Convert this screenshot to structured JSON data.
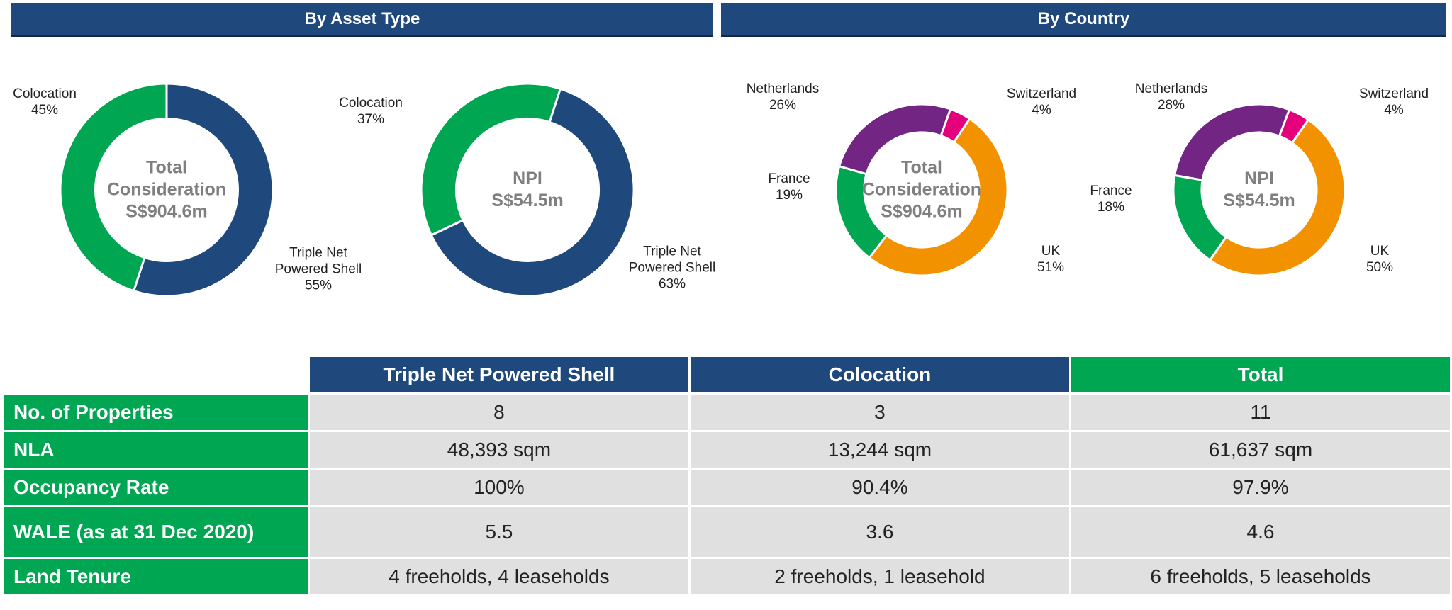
{
  "sections": {
    "asset_type": "By Asset Type",
    "country": "By Country"
  },
  "colors": {
    "navy": "#1f497d",
    "green": "#00a651",
    "orange": "#f39200",
    "purple": "#722583",
    "pink": "#e4007c"
  },
  "chart_data": [
    {
      "type": "pie",
      "title": "Total Consideration",
      "center": [
        "Total",
        "Consideration",
        "S$904.6m"
      ],
      "start_angle_deg": 0,
      "slices": [
        {
          "label": "Triple Net Powered Shell",
          "label_lines": [
            "Triple Net",
            "Powered Shell"
          ],
          "value": 55,
          "text": "55%",
          "color": "#1f497d"
        },
        {
          "label": "Colocation",
          "label_lines": [
            "Colocation"
          ],
          "value": 45,
          "text": "45%",
          "color": "#00a651"
        }
      ]
    },
    {
      "type": "pie",
      "title": "NPI",
      "center": [
        "NPI",
        "S$54.5m"
      ],
      "start_angle_deg": 18,
      "slices": [
        {
          "label": "Triple Net Powered Shell",
          "label_lines": [
            "Triple Net",
            "Powered Shell"
          ],
          "value": 63,
          "text": "63%",
          "color": "#1f497d"
        },
        {
          "label": "Colocation",
          "label_lines": [
            "Colocation"
          ],
          "value": 37,
          "text": "37%",
          "color": "#00a651"
        }
      ]
    },
    {
      "type": "pie",
      "title": "Total Consideration",
      "center": [
        "Total",
        "Consideration",
        "S$904.6m"
      ],
      "start_angle_deg": 34,
      "slices": [
        {
          "label": "UK",
          "label_lines": [
            "UK"
          ],
          "value": 51,
          "text": "51%",
          "color": "#f39200"
        },
        {
          "label": "France",
          "label_lines": [
            "France"
          ],
          "value": 19,
          "text": "19%",
          "color": "#00a651"
        },
        {
          "label": "Netherlands",
          "label_lines": [
            "Netherlands"
          ],
          "value": 26,
          "text": "26%",
          "color": "#722583"
        },
        {
          "label": "Switzerland",
          "label_lines": [
            "Switzerland"
          ],
          "value": 4,
          "text": "4%",
          "color": "#e4007c"
        }
      ]
    },
    {
      "type": "pie",
      "title": "NPI",
      "center": [
        "NPI",
        "S$54.5m"
      ],
      "start_angle_deg": 35,
      "slices": [
        {
          "label": "UK",
          "label_lines": [
            "UK"
          ],
          "value": 50,
          "text": "50%",
          "color": "#f39200"
        },
        {
          "label": "France",
          "label_lines": [
            "France"
          ],
          "value": 18,
          "text": "18%",
          "color": "#00a651"
        },
        {
          "label": "Netherlands",
          "label_lines": [
            "Netherlands"
          ],
          "value": 28,
          "text": "28%",
          "color": "#722583"
        },
        {
          "label": "Switzerland",
          "label_lines": [
            "Switzerland"
          ],
          "value": 4,
          "text": "4%",
          "color": "#e4007c"
        }
      ]
    }
  ],
  "table": {
    "headers": [
      "Triple Net Powered Shell",
      "Colocation",
      "Total"
    ],
    "rows": [
      {
        "label": "No. of Properties",
        "values": [
          "8",
          "3",
          "11"
        ]
      },
      {
        "label": "NLA",
        "values": [
          "48,393 sqm",
          "13,244 sqm",
          "61,637 sqm"
        ]
      },
      {
        "label": "Occupancy Rate",
        "values": [
          "100%",
          "90.4%",
          "97.9%"
        ]
      },
      {
        "label": "WALE (as at 31 Dec 2020)",
        "values": [
          "5.5",
          "3.6",
          "4.6"
        ]
      },
      {
        "label": "Land Tenure",
        "values": [
          "4 freeholds, 4 leaseholds",
          "2 freeholds, 1 leasehold",
          "6 freeholds, 5 leaseholds"
        ]
      }
    ]
  }
}
